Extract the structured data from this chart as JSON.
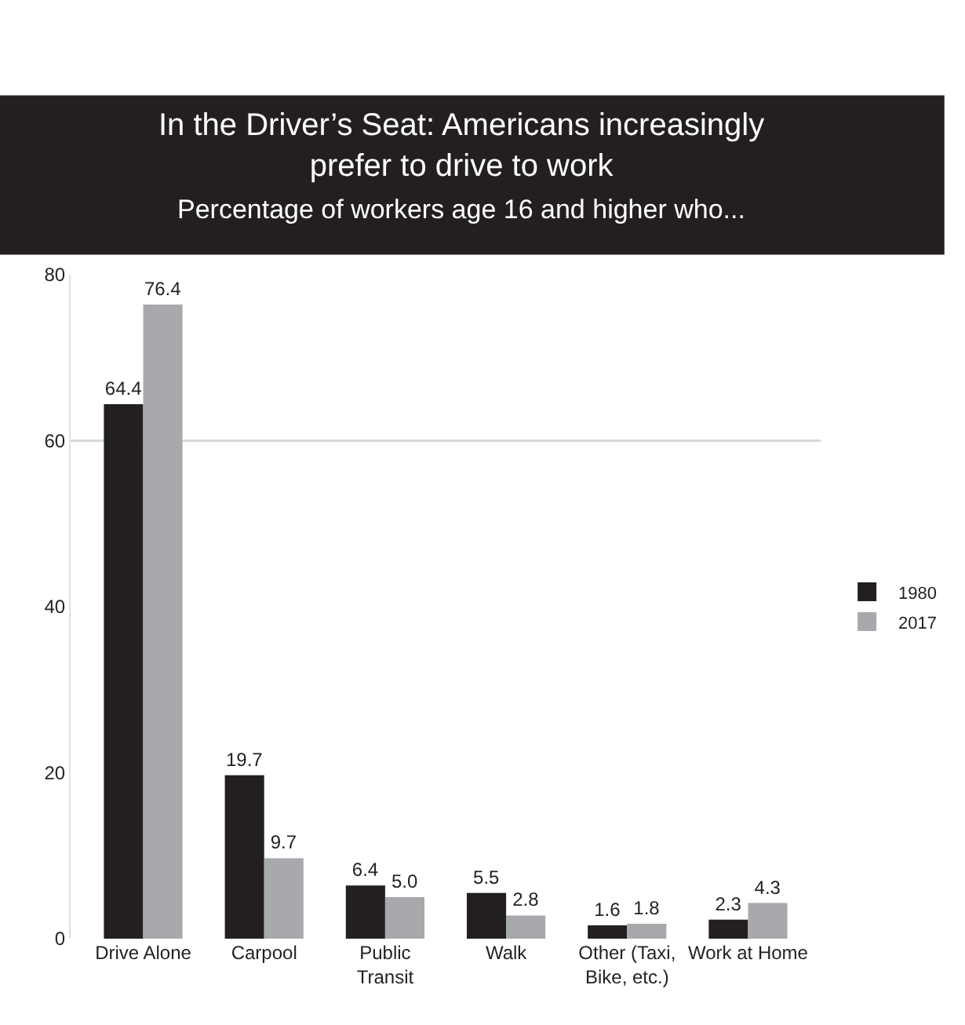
{
  "chart_data": {
    "type": "bar",
    "title": "In the Driver’s Seat: Americans increasingly prefer to drive to work",
    "subtitle": "Percentage of workers age 16 and higher who...",
    "categories": [
      "Drive Alone",
      "Carpool",
      "Public Transit",
      "Walk",
      "Other (Taxi, Bike, etc.)",
      "Work at Home"
    ],
    "series": [
      {
        "name": "1980",
        "color": "#231f20",
        "values": [
          64.4,
          19.7,
          6.4,
          5.5,
          1.6,
          2.3
        ]
      },
      {
        "name": "2017",
        "color": "#a7a9ac",
        "values": [
          76.4,
          9.7,
          5.0,
          2.8,
          1.8,
          4.3
        ],
        "value_labels": [
          "76.4",
          "9.7",
          "5.0",
          "2.8",
          "1.8",
          "4.3"
        ]
      }
    ],
    "ylim": [
      0,
      80
    ],
    "yticks": [
      0,
      20,
      40,
      60,
      80
    ],
    "grid": false,
    "data_labels": true,
    "legend": "right",
    "ref_lines": [
      {
        "axis": "y",
        "value": 60,
        "color": "#d9d9d9"
      }
    ]
  }
}
